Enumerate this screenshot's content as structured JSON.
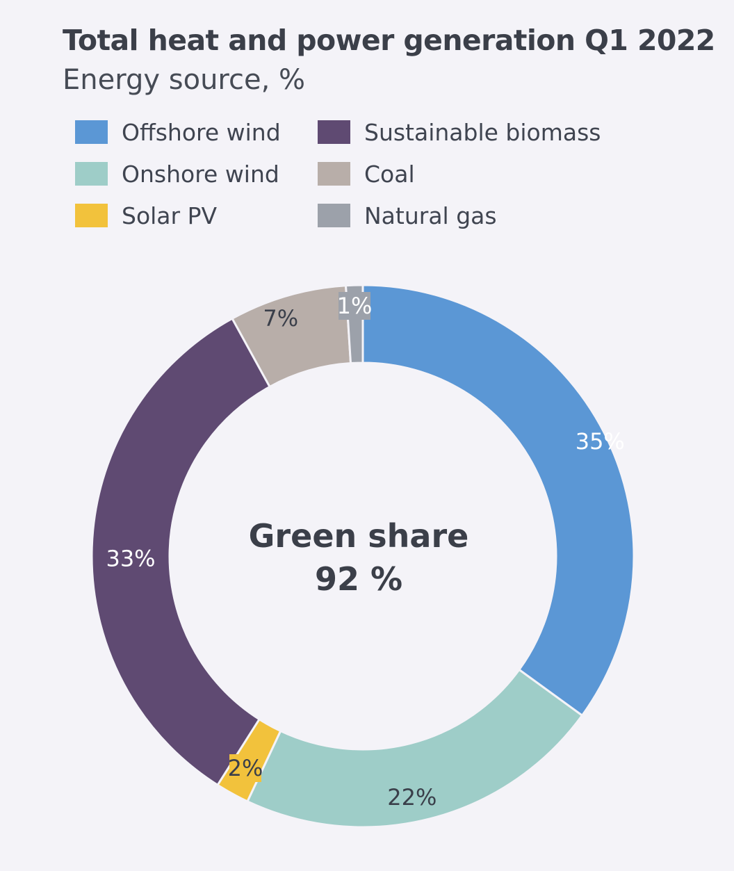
{
  "chart_data": {
    "type": "pie",
    "title": "Total heat and power generation Q1 2022",
    "subtitle": "Energy source, %",
    "unit": "%",
    "categories": [
      "Offshore wind",
      "Onshore wind",
      "Solar PV",
      "Sustainable biomass",
      "Coal",
      "Natural gas"
    ],
    "values": [
      35,
      22,
      2,
      33,
      7,
      1
    ],
    "data_labels": [
      "35%",
      "22%",
      "2%",
      "33%",
      "7%",
      "1%"
    ],
    "colors": [
      "#5b97d5",
      "#9ecdc8",
      "#f2c23c",
      "#5f4a72",
      "#b8aea9",
      "#9ca1aa"
    ],
    "legend": [
      {
        "label": "Offshore wind",
        "color": "#5b97d5"
      },
      {
        "label": "Sustainable biomass",
        "color": "#5f4a72"
      },
      {
        "label": "Onshore wind",
        "color": "#9ecdc8"
      },
      {
        "label": "Coal",
        "color": "#b8aea9"
      },
      {
        "label": "Solar PV",
        "color": "#f2c23c"
      },
      {
        "label": "Natural gas",
        "color": "#9ca1aa"
      }
    ],
    "legend_position": "top",
    "donut": true,
    "center_label": {
      "line1": "Green share",
      "line2": "92 %"
    }
  }
}
